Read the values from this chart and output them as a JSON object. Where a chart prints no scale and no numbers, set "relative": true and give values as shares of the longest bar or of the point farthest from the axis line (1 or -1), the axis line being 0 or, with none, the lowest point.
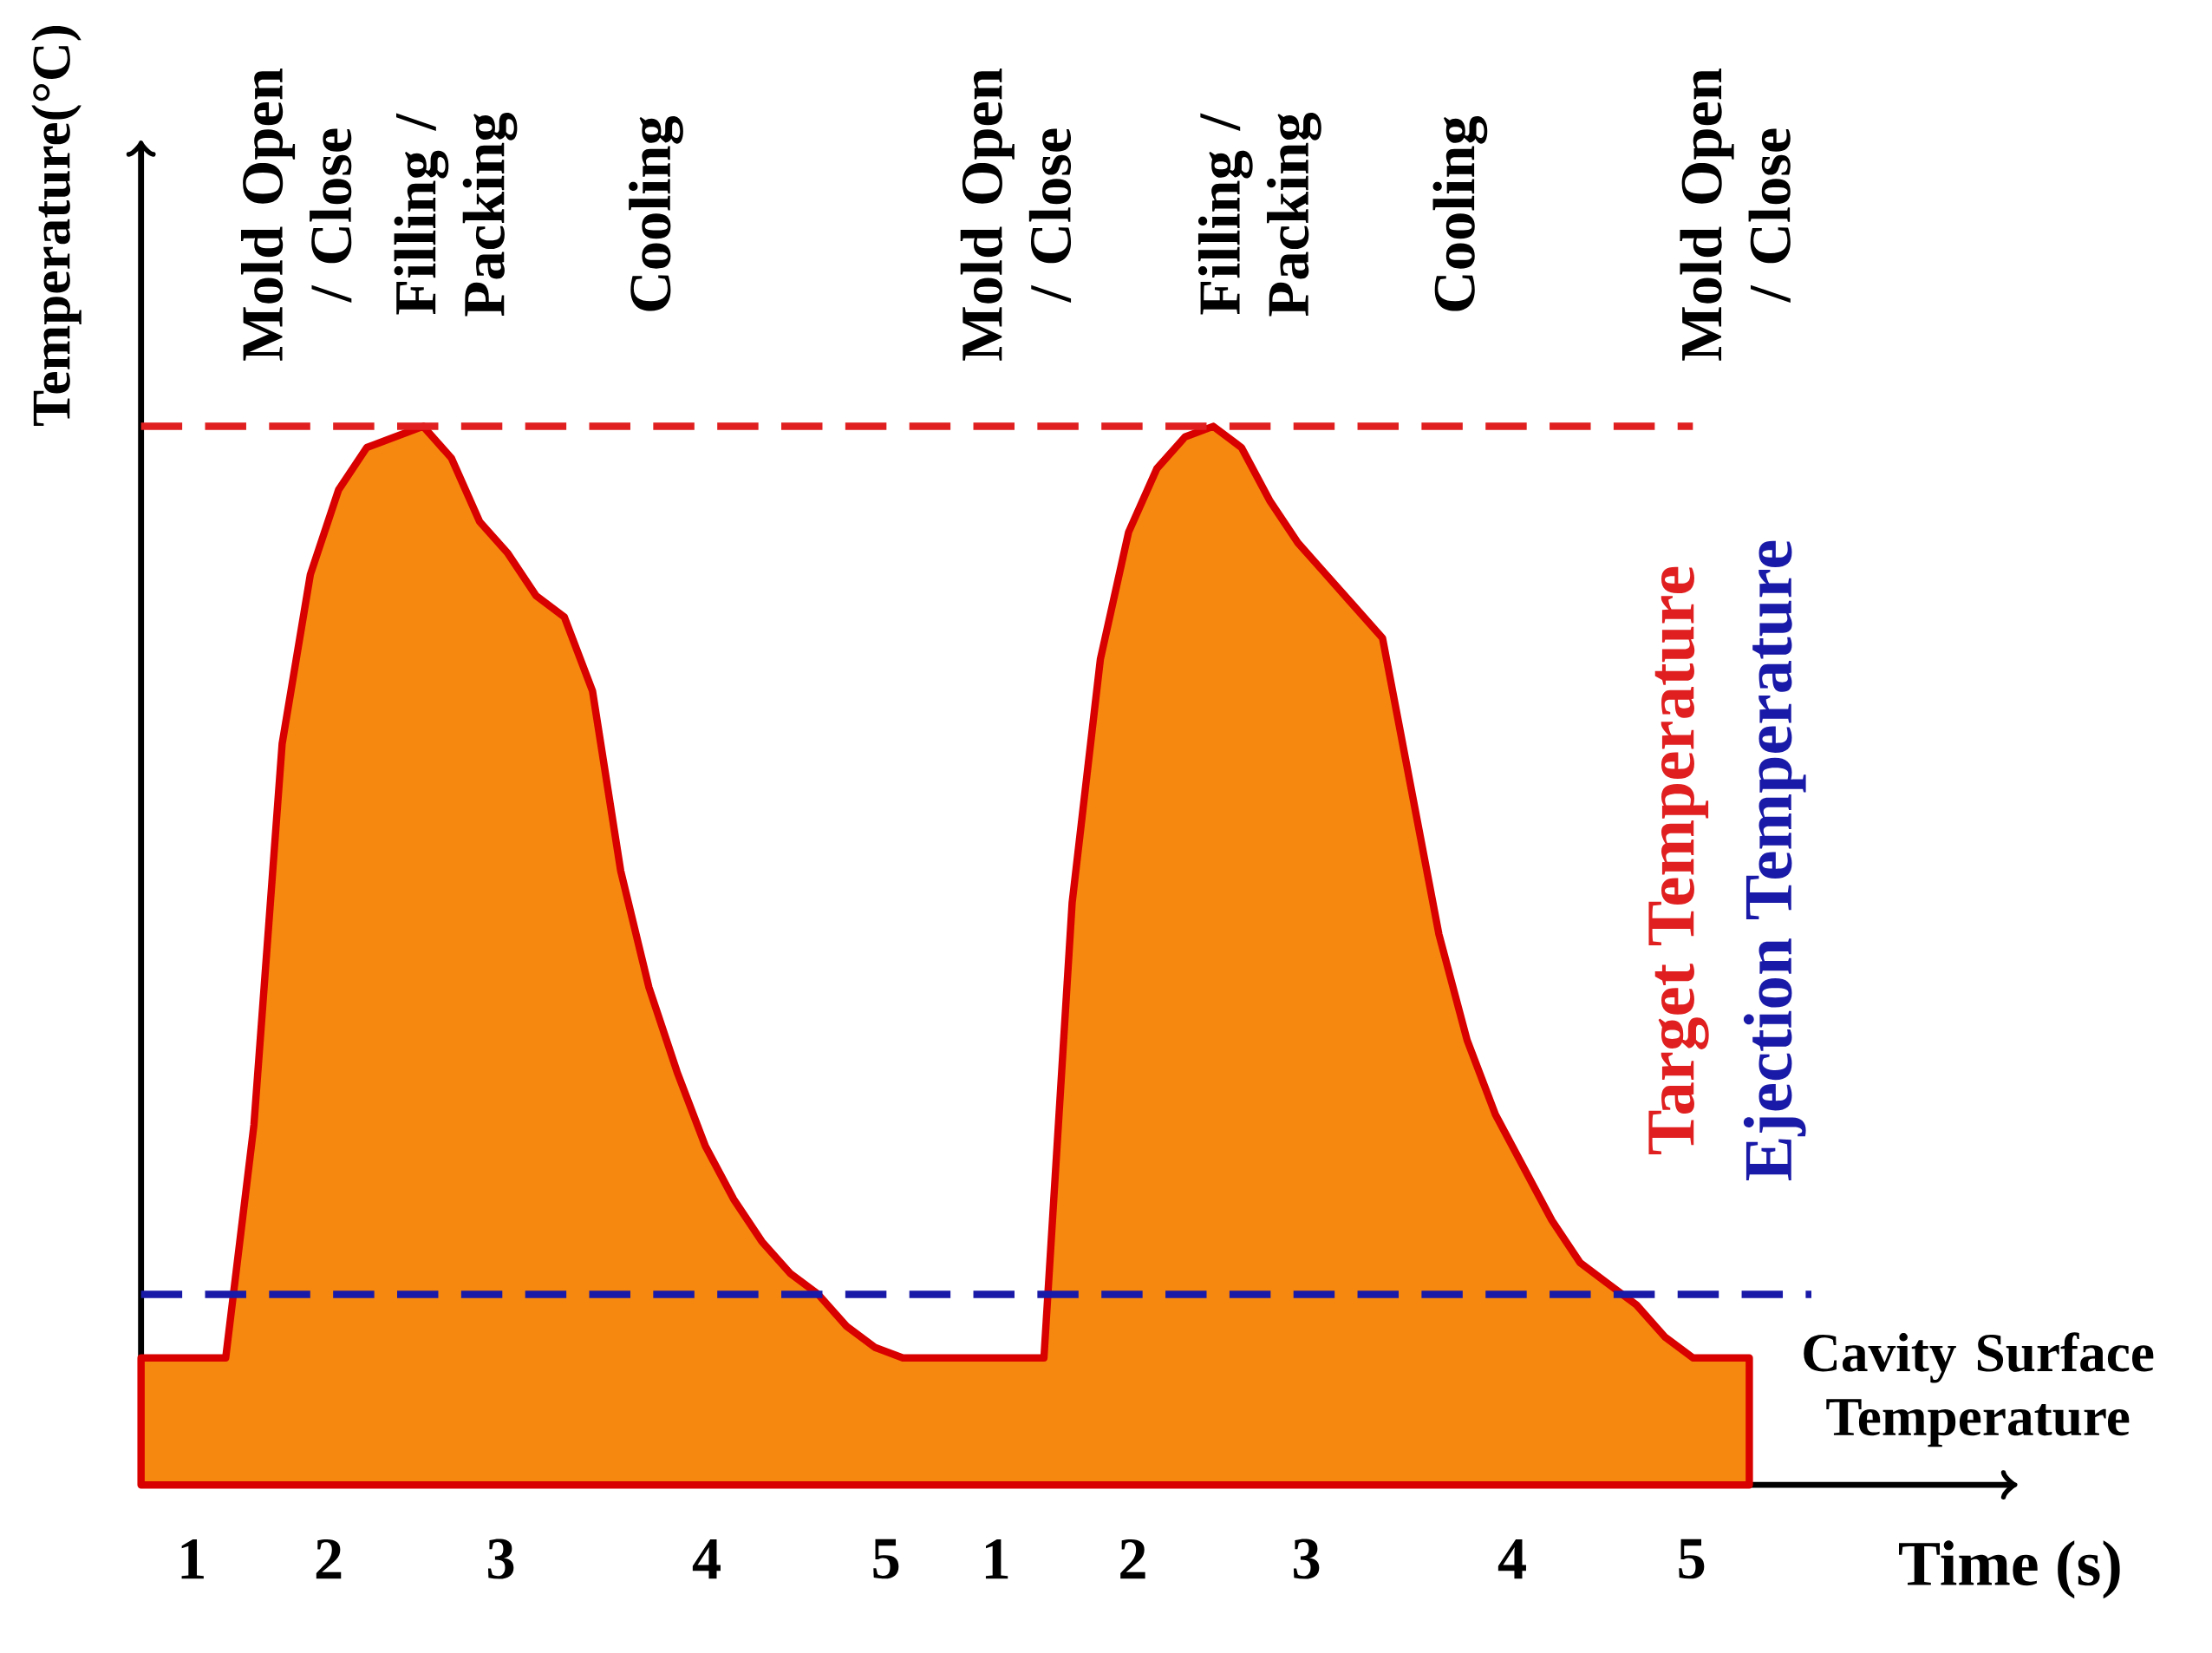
{
  "chart_data": {
    "type": "area",
    "relative": true,
    "xlabel": "Time (s)",
    "ylabel": "Temperature(°C)",
    "categories": [
      null,
      null,
      null,
      null,
      null,
      null,
      null,
      null,
      null,
      null,
      null,
      null,
      null,
      null,
      null,
      null,
      null,
      null,
      null,
      null,
      null,
      null,
      null,
      null,
      null,
      null,
      null,
      null,
      null,
      null,
      null,
      null,
      null,
      null,
      null,
      null,
      null,
      null,
      null,
      null,
      null,
      null,
      null,
      null,
      null,
      null,
      null,
      null,
      null,
      null,
      null,
      null,
      null,
      null,
      null,
      null,
      null,
      null
    ],
    "series": [
      {
        "name": "Cavity Surface Temperature",
        "color": "#f7880f",
        "values": [
          0.12,
          0.12,
          0.12,
          0.12,
          0.34,
          0.7,
          0.86,
          0.94,
          0.98,
          0.99,
          1.0,
          0.97,
          0.91,
          0.88,
          0.84,
          0.82,
          0.75,
          0.58,
          0.47,
          0.39,
          0.32,
          0.27,
          0.23,
          0.2,
          0.18,
          0.15,
          0.13,
          0.12,
          0.12,
          0.12,
          0.12,
          0.12,
          0.12,
          0.55,
          0.78,
          0.9,
          0.96,
          0.99,
          1.0,
          0.98,
          0.93,
          0.89,
          0.86,
          0.83,
          0.8,
          0.66,
          0.52,
          0.42,
          0.35,
          0.3,
          0.25,
          0.21,
          0.19,
          0.17,
          0.14,
          0.12,
          0.12,
          0.12
        ]
      }
    ],
    "ref_lines": [
      {
        "axis": "y",
        "value": 1.0,
        "label": "Target Temperature",
        "color": "#e02020",
        "line_style": "dashed"
      },
      {
        "axis": "y",
        "value": 0.18,
        "label": "Ejection Temperature",
        "color": "#1a1aa8",
        "line_style": "dashed"
      }
    ],
    "annotations": [
      "Mold Open / Close",
      "Filling / Packing",
      "Cooling",
      "Mold Open / Close",
      "Filling / Packing",
      "Cooling",
      "Mold Open / Close",
      "1",
      "2",
      "3",
      "4",
      "5",
      "1",
      "2",
      "3",
      "4",
      "5"
    ]
  }
}
